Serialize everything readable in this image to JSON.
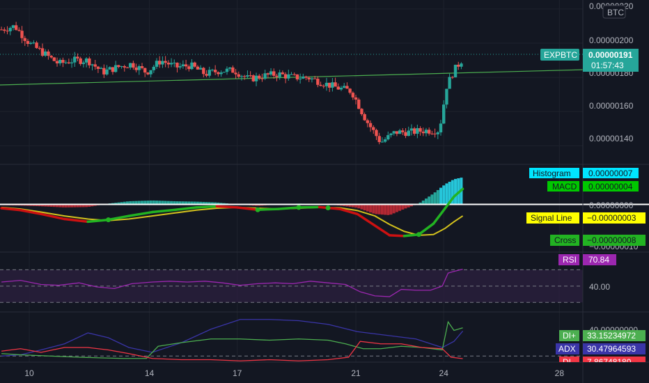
{
  "symbol": "EXPBTC",
  "currency_label": "BTC",
  "colors": {
    "background": "#131722",
    "grid": "#1e222d",
    "up": "#26a69a",
    "down": "#ef5350",
    "trend_line": "#4caf50",
    "macd_line_up": "#22b322",
    "macd_line_down": "#cc1111",
    "signal": "#d4c21d",
    "rsi": "#9c27b0",
    "rsi_band": "#2a1f3d",
    "di_plus": "#4caf50",
    "di_minus": "#f23645",
    "adx": "#3a35a8",
    "histogram_tag": "#00e5ff",
    "macd_tag": "#00c800",
    "signal_tag": "#ffff00",
    "cross_tag": "#22b322",
    "price_tag": "#26a69a"
  },
  "price_panel": {
    "axis_labels": [
      "0.00000220",
      "0.00000200",
      "0.00000180",
      "0.00000160",
      "0.00000140"
    ],
    "current_price": "0.00000191",
    "countdown": "01:57:43"
  },
  "macd_panel": {
    "axis_labels": [
      "0.00000000",
      "−0.00000010"
    ],
    "histogram_label": "Histogram",
    "histogram_value": "0.00000007",
    "macd_label": "MACD",
    "macd_value": "0.00000004",
    "signal_label": "Signal Line",
    "signal_value": "−0.00000003",
    "cross_label": "Cross",
    "cross_value": "−0.00000008"
  },
  "rsi_panel": {
    "axis_labels": [
      "40.00"
    ],
    "rsi_label": "RSI",
    "rsi_value": "70.84"
  },
  "dmi_panel": {
    "axis_labels": [
      "40.00000000"
    ],
    "di_plus_label": "DI+",
    "di_plus_value": "33.15234972",
    "adx_label": "ADX",
    "adx_value": "30.47964593",
    "di_minus_label": "DI-",
    "di_minus_value": "7.86748180"
  },
  "time_axis": {
    "labels": [
      "10",
      "14",
      "17",
      "21",
      "24",
      "28"
    ]
  },
  "chart_data": {
    "type": "candlestick",
    "symbol": "EXPBTC",
    "y_range": [
      1.3e-06,
      2.22e-06
    ],
    "x_ticks": [
      "10",
      "14",
      "17",
      "21",
      "24",
      "28"
    ],
    "x_tick_positions": [
      9.8,
      13.9,
      16.9,
      20.95,
      23.95,
      27.9
    ],
    "x_range": [
      8.8,
      28.7
    ],
    "trend_line": {
      "x": [
        8.8,
        28.7
      ],
      "y": [
        1.756e-06,
        1.845e-06
      ]
    },
    "rsi_range": [
      20,
      90
    ],
    "rsi_levels": [
      70,
      50,
      30
    ],
    "dmi_range": [
      5,
      45
    ],
    "dmi_levels": [
      10
    ],
    "macd_range": [
      -1.2e-07,
      1e-07
    ],
    "candles_anchors": {
      "x": [
        8.85,
        9.3,
        9.8,
        10.3,
        10.8,
        11.3,
        11.8,
        12.3,
        12.8,
        13.3,
        13.8,
        14.3,
        14.8,
        15.3,
        15.8,
        16.3,
        16.8,
        17.3,
        17.8,
        18.3,
        18.8,
        19.3,
        19.8,
        20.3,
        20.8,
        21.3,
        21.8,
        22.3,
        22.8,
        23.3,
        23.8,
        24.05,
        24.3,
        24.6
      ],
      "close": [
        2.08e-06,
        2.1e-06,
        2e-06,
        1.94e-06,
        1.88e-06,
        1.9e-06,
        1.9e-06,
        1.83e-06,
        1.86e-06,
        1.88e-06,
        1.83e-06,
        1.9e-06,
        1.86e-06,
        1.87e-06,
        1.82e-06,
        1.84e-06,
        1.84e-06,
        1.79e-06,
        1.81e-06,
        1.82e-06,
        1.8e-06,
        1.8e-06,
        1.77e-06,
        1.74e-06,
        1.72e-06,
        1.55e-06,
        1.42e-06,
        1.48e-06,
        1.48e-06,
        1.49e-06,
        1.49e-06,
        1.75e-06,
        1.84e-06,
        1.91e-06
      ]
    },
    "rsi": {
      "x": [
        8.85,
        9.5,
        10.2,
        10.8,
        11.5,
        12.1,
        12.7,
        13.3,
        14.0,
        14.6,
        15.2,
        15.8,
        16.4,
        17.0,
        17.6,
        18.2,
        18.8,
        19.4,
        20.0,
        20.6,
        21.1,
        21.6,
        22.1,
        22.5,
        23.0,
        23.5,
        23.9,
        24.1,
        24.3,
        24.6
      ],
      "y": [
        55,
        57,
        52,
        51,
        54,
        49,
        47,
        53,
        55,
        56,
        55,
        56,
        54,
        51,
        53,
        54,
        53,
        56,
        54,
        52,
        43,
        38,
        37,
        46,
        45,
        45,
        50,
        66,
        68,
        70.84
      ]
    },
    "macd": {
      "x": [
        8.85,
        9.5,
        10.2,
        11.0,
        11.8,
        12.5,
        13.2,
        14.0,
        14.8,
        15.5,
        16.2,
        16.9,
        17.6,
        18.3,
        19.0,
        19.7,
        20.4,
        21.0,
        21.6,
        22.1,
        22.6,
        23.1,
        23.6,
        24.0,
        24.3,
        24.6
      ],
      "y": [
        -1e-08,
        -1.5e-08,
        -2.5e-08,
        -3.8e-08,
        -4.5e-08,
        -4e-08,
        -3e-08,
        -2e-08,
        -1.4e-08,
        -8e-09,
        -5e-09,
        -8e-09,
        -1.4e-08,
        -1.2e-08,
        -8e-09,
        -7e-09,
        -1.2e-08,
        -2.5e-08,
        -5.5e-08,
        -8e-08,
        -8.2e-08,
        -7.8e-08,
        -5e-08,
        -1e-08,
        2e-08,
        4e-08
      ]
    },
    "signal": {
      "x": [
        8.85,
        9.5,
        10.2,
        11.0,
        11.8,
        12.5,
        13.2,
        14.0,
        14.8,
        15.5,
        16.2,
        16.9,
        17.6,
        18.3,
        19.0,
        19.7,
        20.4,
        21.0,
        21.6,
        22.1,
        22.6,
        23.1,
        23.6,
        24.0,
        24.3,
        24.6
      ],
      "y": [
        -8e-09,
        -1.2e-08,
        -2e-08,
        -3e-08,
        -3.8e-08,
        -4.2e-08,
        -3.8e-08,
        -3e-08,
        -2.2e-08,
        -1.5e-08,
        -1e-08,
        -8e-09,
        -1e-08,
        -1.2e-08,
        -1e-08,
        -8e-09,
        -9e-09,
        -1.6e-08,
        -3e-08,
        -5.2e-08,
        -7e-08,
        -8e-08,
        -7.8e-08,
        -6.2e-08,
        -4.5e-08,
        -3e-08
      ]
    },
    "di_plus": {
      "x": [
        8.85,
        9.5,
        10.5,
        11.5,
        12.2,
        13.0,
        13.8,
        14.2,
        15.0,
        16.0,
        17.0,
        18.0,
        19.0,
        20.0,
        20.6,
        21.2,
        21.8,
        22.5,
        23.2,
        23.9,
        24.1,
        24.3,
        24.6
      ],
      "y": [
        12,
        11,
        10,
        9,
        8.5,
        8,
        8,
        18,
        21,
        24,
        24,
        23,
        24,
        23,
        20,
        16,
        16,
        18,
        17,
        15,
        38,
        31,
        33.15
      ]
    },
    "di_minus": {
      "x": [
        8.85,
        9.5,
        10.2,
        11.0,
        11.8,
        12.5,
        13.2,
        14.0,
        15.0,
        16.0,
        17.0,
        18.0,
        19.0,
        20.0,
        20.7,
        21.1,
        21.8,
        22.5,
        23.2,
        23.9,
        24.2,
        24.6
      ],
      "y": [
        14,
        16,
        13,
        17,
        17,
        15,
        12,
        8,
        7,
        7,
        6,
        7,
        6,
        7,
        9,
        22,
        20,
        20,
        17,
        16,
        9,
        7.87
      ]
    },
    "adx": {
      "x": [
        8.85,
        9.5,
        10.2,
        11.0,
        11.8,
        12.5,
        13.2,
        14.0,
        15.0,
        16.0,
        17.0,
        18.0,
        19.0,
        20.0,
        21.0,
        22.0,
        23.0,
        23.9,
        24.3,
        24.6
      ],
      "y": [
        10,
        11,
        15,
        20,
        29,
        25,
        17,
        13,
        21,
        32,
        40,
        40,
        39,
        36,
        30,
        27,
        24,
        17,
        22,
        30.48
      ]
    },
    "series_names": [
      "EXPBTC",
      "Histogram",
      "MACD",
      "Signal Line",
      "Cross",
      "RSI",
      "DI+",
      "ADX",
      "DI-"
    ]
  }
}
